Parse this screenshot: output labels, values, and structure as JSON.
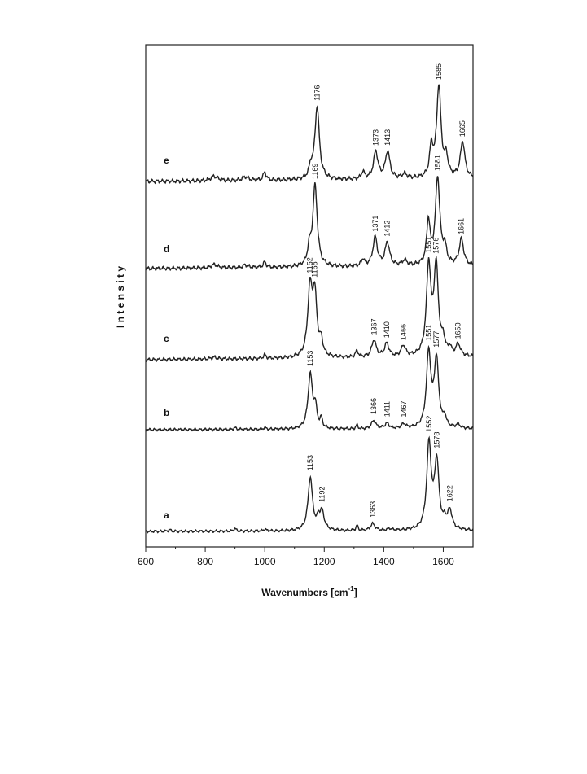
{
  "chart_data": {
    "type": "line",
    "xlabel": "Wavenumbers [cm",
    "xlabel_sup": "-1",
    "xlabel_end": "]",
    "ylabel": "I n t e n s i t y",
    "xlim": [
      600,
      1700
    ],
    "xticks": [
      "600",
      "800",
      "1000",
      "1200",
      "1400",
      "1600"
    ],
    "y_tick_labels": false,
    "grid": false,
    "series": [
      {
        "name": "a",
        "peaks": [
          {
            "x": 1153,
            "label": "1153",
            "rel": 0.62
          },
          {
            "x": 1192,
            "label": "1192",
            "rel": 0.22
          },
          {
            "x": 1363,
            "label": "1363",
            "rel": 0.08
          },
          {
            "x": 1552,
            "label": "1552",
            "rel": 1.0
          },
          {
            "x": 1578,
            "label": "1578",
            "rel": 0.78
          },
          {
            "x": 1622,
            "label": "1622",
            "rel": 0.22
          }
        ]
      },
      {
        "name": "b",
        "peaks": [
          {
            "x": 1153,
            "label": "1153",
            "rel": 0.73
          },
          {
            "x": 1366,
            "label": "1366",
            "rel": 0.11
          },
          {
            "x": 1411,
            "label": "1411",
            "rel": 0.07
          },
          {
            "x": 1467,
            "label": "1467",
            "rel": 0.06
          },
          {
            "x": 1551,
            "label": "1551",
            "rel": 1.0
          },
          {
            "x": 1577,
            "label": "1577",
            "rel": 0.9
          }
        ]
      },
      {
        "name": "c",
        "peaks": [
          {
            "x": 1152,
            "label": "1152",
            "rel": 0.73
          },
          {
            "x": 1168,
            "label": "1168",
            "rel": 0.66
          },
          {
            "x": 1367,
            "label": "1367",
            "rel": 0.19
          },
          {
            "x": 1410,
            "label": "1410",
            "rel": 0.15
          },
          {
            "x": 1466,
            "label": "1466",
            "rel": 0.12
          },
          {
            "x": 1551,
            "label": "1551",
            "rel": 1.0
          },
          {
            "x": 1576,
            "label": "1576",
            "rel": 0.98
          },
          {
            "x": 1650,
            "label": "1650",
            "rel": 0.13
          }
        ]
      },
      {
        "name": "d",
        "peaks": [
          {
            "x": 1169,
            "label": "1169",
            "rel": 0.93
          },
          {
            "x": 1371,
            "label": "1371",
            "rel": 0.33
          },
          {
            "x": 1412,
            "label": "1412",
            "rel": 0.27
          },
          {
            "x": 1581,
            "label": "1581",
            "rel": 1.0
          },
          {
            "x": 1661,
            "label": "1661",
            "rel": 0.3
          }
        ]
      },
      {
        "name": "e",
        "peaks": [
          {
            "x": 1176,
            "label": "1176",
            "rel": 0.8
          },
          {
            "x": 1373,
            "label": "1373",
            "rel": 0.3
          },
          {
            "x": 1413,
            "label": "1413",
            "rel": 0.3
          },
          {
            "x": 1585,
            "label": "1585",
            "rel": 1.0
          },
          {
            "x": 1665,
            "label": "1665",
            "rel": 0.4
          }
        ]
      }
    ]
  }
}
